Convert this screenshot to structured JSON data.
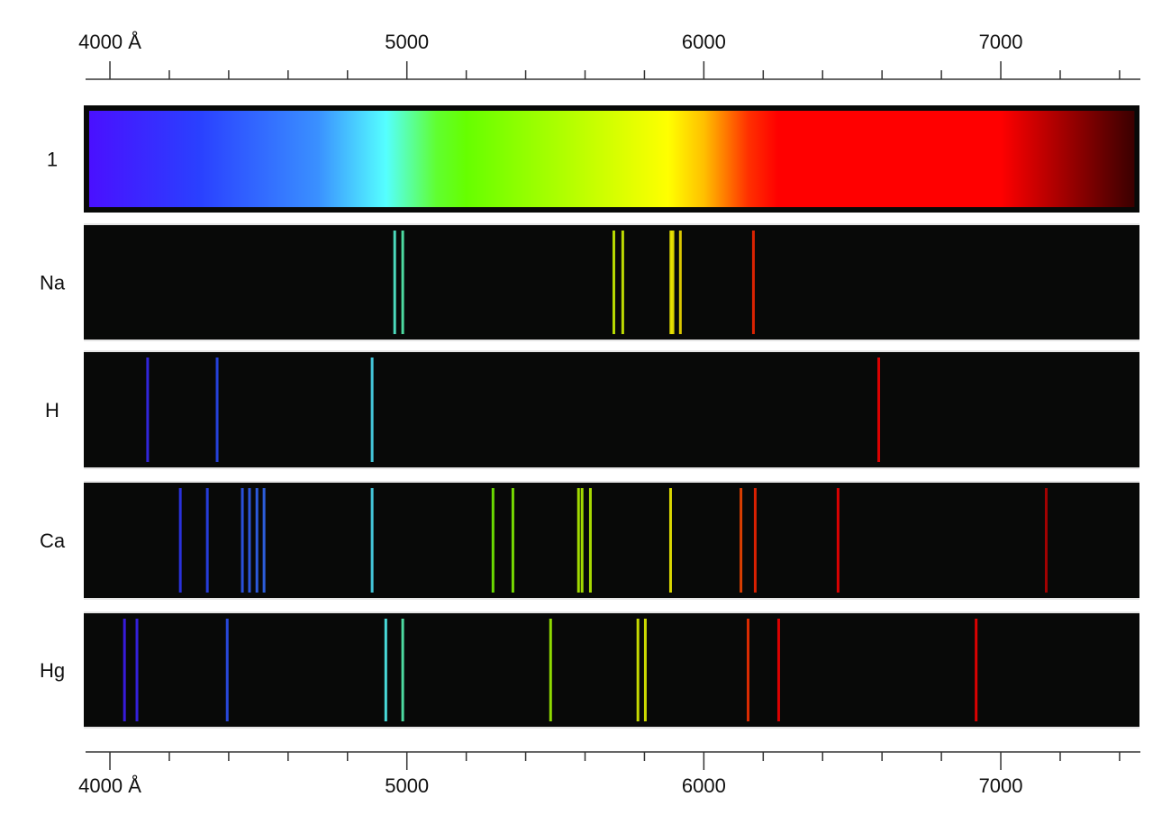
{
  "chart_data": {
    "type": "spectrum",
    "xlim": [
      3918,
      7467
    ],
    "xticks": [
      {
        "value": 4000,
        "label": "4000 Å"
      },
      5000,
      6000,
      7000
    ],
    "xminor_ticks": [
      4200,
      4400,
      4600,
      4800,
      5200,
      5400,
      5600,
      5800,
      6200,
      6400,
      6600,
      6800,
      7200,
      7400
    ],
    "gradient": [
      {
        "at": 3930,
        "color": "#4a10ff"
      },
      {
        "at": 4300,
        "color": "#2a40ff"
      },
      {
        "at": 4700,
        "color": "#3a90ff"
      },
      {
        "at": 4930,
        "color": "#55ffff"
      },
      {
        "at": 5100,
        "color": "#60ff30"
      },
      {
        "at": 5200,
        "color": "#66ff00"
      },
      {
        "at": 5880,
        "color": "#ffff00"
      },
      {
        "at": 6000,
        "color": "#ffc000"
      },
      {
        "at": 6150,
        "color": "#ff3000"
      },
      {
        "at": 6250,
        "color": "#ff0000"
      },
      {
        "at": 7000,
        "color": "#ff0000"
      },
      {
        "at": 7450,
        "color": "#3a0000"
      }
    ],
    "rows": [
      {
        "name": "1",
        "continuous": true
      },
      {
        "name": "Na",
        "lines": [
          4959,
          4986,
          5697,
          5727,
          5889,
          5896,
          5921,
          6167
        ]
      },
      {
        "name": "H",
        "lines": [
          4127,
          4361,
          4883,
          6589
        ]
      },
      {
        "name": "Ca",
        "lines": [
          4237,
          4328,
          4446,
          4470,
          4495,
          4519,
          4883,
          5290,
          5357,
          5578,
          5590,
          5618,
          5888,
          6125,
          6173,
          6452,
          7153
        ]
      },
      {
        "name": "Hg",
        "lines": [
          4049,
          4091,
          4395,
          4929,
          4986,
          5484,
          5778,
          5803,
          6149,
          6252,
          6917
        ]
      }
    ]
  }
}
